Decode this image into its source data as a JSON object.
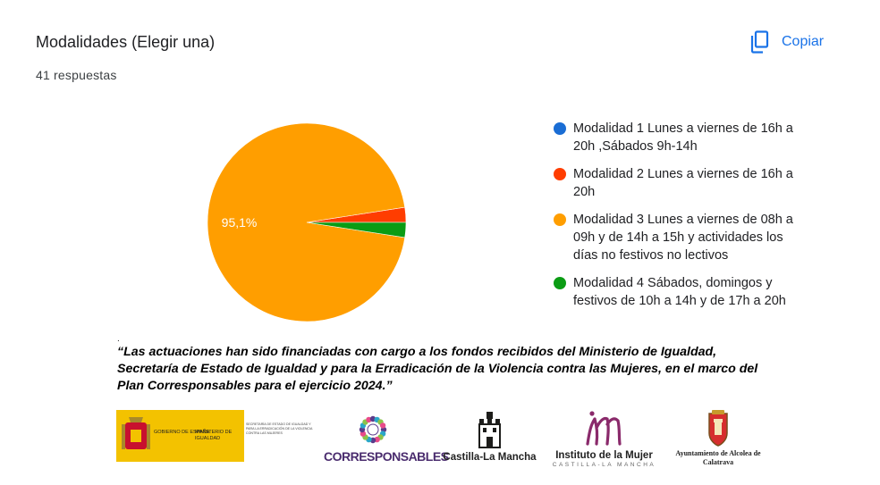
{
  "header": {
    "title": "Modalidades (Elegir una)",
    "responses": "41 respuestas",
    "copy_label": "Copiar"
  },
  "chart_data": {
    "type": "pie",
    "categories": [
      "Modalidad 1 Lunes a viernes de 16h a 20h ,Sábados 9h-14h",
      "Modalidad 2 Lunes a viernes de 16h a 20h",
      "Modalidad 3 Lunes a viernes de 08h a 09h y de 14h a 15h y actividades los días no festivos no lectivos",
      "Modalidad 4 Sábados, domingos y festivos de 10h a 14h y de 17h a 20h"
    ],
    "values": [
      0,
      1,
      39,
      1
    ],
    "colors": [
      "#1a6dd4",
      "#ff3d00",
      "#ff9e00",
      "#0b9c14"
    ],
    "data_labels": [
      "",
      "",
      "95,1%",
      ""
    ],
    "legend": "right"
  },
  "footer": {
    "dot": ".",
    "note": "“Las actuaciones han sido financiadas con cargo a los fondos recibidos del Ministerio de Igualdad, Secretaría de Estado de Igualdad y para la Erradicación de la Violencia contra las Mujeres, en el marco del Plan Corresponsables para el ejercicio 2024.”",
    "logos": {
      "gobierno": "GOBIERNO DE ESPAÑA",
      "ministerio": "MINISTERIO DE IGUALDAD",
      "secretaria": "SECRETARÍA DE ESTADO DE IGUALDAD Y PARA LA ERRADICACIÓN DE LA VIOLENCIA CONTRA LAS MUJERES",
      "corresponsables": "CORRESPONSABLES",
      "castilla": "Castilla-La Mancha",
      "instituto": "Instituto de la Mujer",
      "instituto_sub": "CASTILLA-LA MANCHA",
      "ayuntamiento": "Ayuntamiento de Alcolea de Calatrava"
    }
  }
}
